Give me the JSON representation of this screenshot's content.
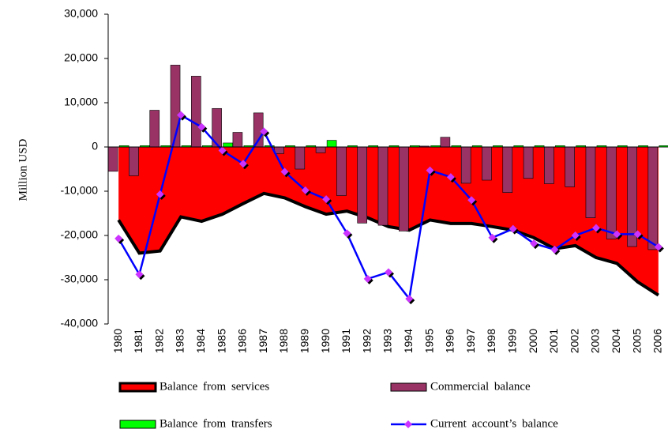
{
  "chart_data": {
    "type": "combo",
    "y_label": "Million USD",
    "categories": [
      "1980",
      "1981",
      "1982",
      "1983",
      "1984",
      "1985",
      "1986",
      "1987",
      "1988",
      "1989",
      "1990",
      "1991",
      "1992",
      "1993",
      "1994",
      "1995",
      "1996",
      "1997",
      "1998",
      "1999",
      "2000",
      "2001",
      "2002",
      "2003",
      "2004",
      "2005",
      "2006"
    ],
    "series": [
      {
        "name": "Balance from services",
        "kind": "area",
        "color": "#ff0000",
        "values": [
          -16500,
          -24000,
          -23500,
          -15800,
          -16800,
          -15200,
          -12800,
          -10500,
          -11500,
          -13500,
          -15200,
          -14500,
          -16000,
          -18000,
          -18800,
          -16500,
          -17300,
          -17300,
          -18000,
          -18800,
          -20500,
          -23000,
          -22300,
          -25000,
          -26300,
          -30500,
          -33500
        ]
      },
      {
        "name": "Commercial balance",
        "kind": "bar",
        "color": "#993366",
        "values": [
          -5500,
          -6500,
          8300,
          18500,
          16000,
          8700,
          3300,
          7700,
          -1500,
          -5000,
          -1300,
          -11000,
          -17200,
          -17700,
          -19000,
          200,
          2200,
          -8200,
          -7500,
          -10300,
          -7100,
          -8300,
          -9000,
          -16000,
          -20800,
          -22500,
          -23200
        ]
      },
      {
        "name": "Balance from transfers",
        "kind": "bar",
        "color": "#00ff00",
        "values": [
          300,
          300,
          300,
          300,
          300,
          900,
          300,
          300,
          300,
          300,
          1500,
          300,
          300,
          300,
          300,
          300,
          300,
          300,
          300,
          300,
          300,
          300,
          300,
          300,
          300,
          300,
          300
        ]
      },
      {
        "name": "Current account’s balance",
        "kind": "line",
        "color": "#0000ff",
        "marker_color": "#cc33ff",
        "values": [
          -20700,
          -28800,
          -10700,
          7200,
          4500,
          -800,
          -3800,
          3500,
          -5600,
          -9800,
          -11800,
          -19500,
          -29800,
          -28300,
          -34300,
          -5300,
          -6800,
          -12000,
          -20500,
          -18500,
          -21800,
          -23200,
          -20000,
          -18300,
          -19700,
          -19700,
          -22600
        ]
      }
    ],
    "ylim": [
      -40000,
      30000
    ],
    "yticks": [
      {
        "value": -40000,
        "label": "-40,000"
      },
      {
        "value": -30000,
        "label": "-30,000"
      },
      {
        "value": -20000,
        "label": "-20,000"
      },
      {
        "value": -10000,
        "label": "-10,000"
      },
      0,
      {
        "value": 10000,
        "label": "10,000"
      },
      {
        "value": 20000,
        "label": "20,000"
      },
      {
        "value": 30000,
        "label": "30,000"
      }
    ]
  }
}
